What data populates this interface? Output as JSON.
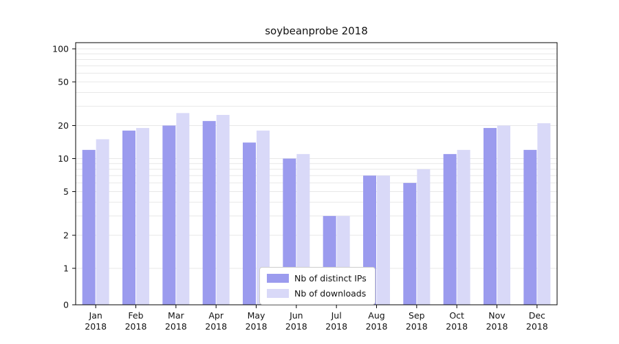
{
  "chart_data": {
    "type": "bar",
    "title": "soybeanprobe 2018",
    "categories": [
      "Jan",
      "Feb",
      "Mar",
      "Apr",
      "May",
      "Jun",
      "Jul",
      "Aug",
      "Sep",
      "Oct",
      "Nov",
      "Dec"
    ],
    "year": "2018",
    "series": [
      {
        "name": "Nb of distinct IPs",
        "color": "#9b9bee",
        "values": [
          12,
          18,
          20,
          22,
          14,
          10,
          3,
          7,
          6,
          11,
          19,
          12
        ]
      },
      {
        "name": "Nb of downloads",
        "color": "#d9d9f8",
        "values": [
          15,
          19,
          26,
          25,
          18,
          11,
          3,
          7,
          8,
          12,
          20,
          21
        ]
      }
    ],
    "yticks": [
      0,
      1,
      2,
      5,
      10,
      20,
      50,
      100
    ],
    "minor_gridlines": [
      1,
      2,
      3,
      4,
      5,
      6,
      7,
      8,
      9,
      10,
      20,
      30,
      40,
      50,
      60,
      70,
      80,
      90,
      100
    ],
    "yscale": "symlog",
    "ylim": [
      0,
      110
    ],
    "grid": true,
    "legend_position": "lower-center",
    "colors": {
      "grid": "#e7e7e7",
      "axis": "#000000",
      "text": "#111111"
    }
  }
}
